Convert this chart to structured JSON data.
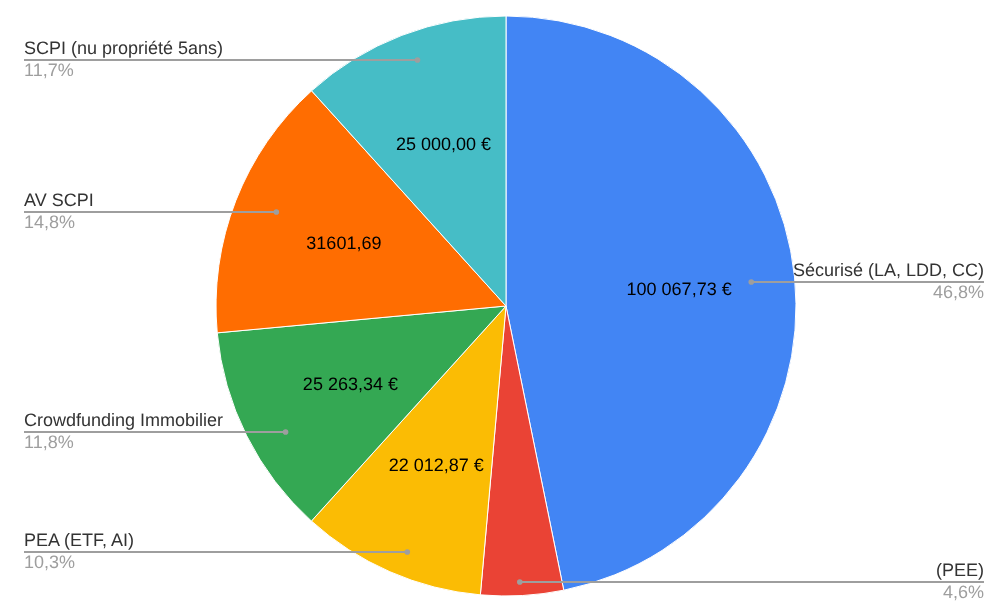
{
  "chart_data": {
    "type": "pie",
    "categories": [
      "Sécurisé (LA, LDD, CC)",
      "(PEE)",
      "PEA (ETF, AI)",
      "Crowdfunding Immobilier",
      "AV SCPI",
      "SCPI (nu propriété 5ans)"
    ],
    "values": [
      100067.73,
      9835,
      22012.87,
      25263.34,
      31601.69,
      25000
    ],
    "colors": [
      "#4285f4",
      "#ea4335",
      "#fbbc04",
      "#34a853",
      "#ff6d01",
      "#46bdc6"
    ],
    "value_labels": [
      "100 067,73 €",
      null,
      "22 012,87 €",
      "25 263,34 €",
      "31601,69",
      "25 000,00 €"
    ],
    "annotations": [
      "46,8%",
      "4,6%",
      "10,3%",
      "11,8%",
      "14,8%",
      "11,7%"
    ]
  }
}
